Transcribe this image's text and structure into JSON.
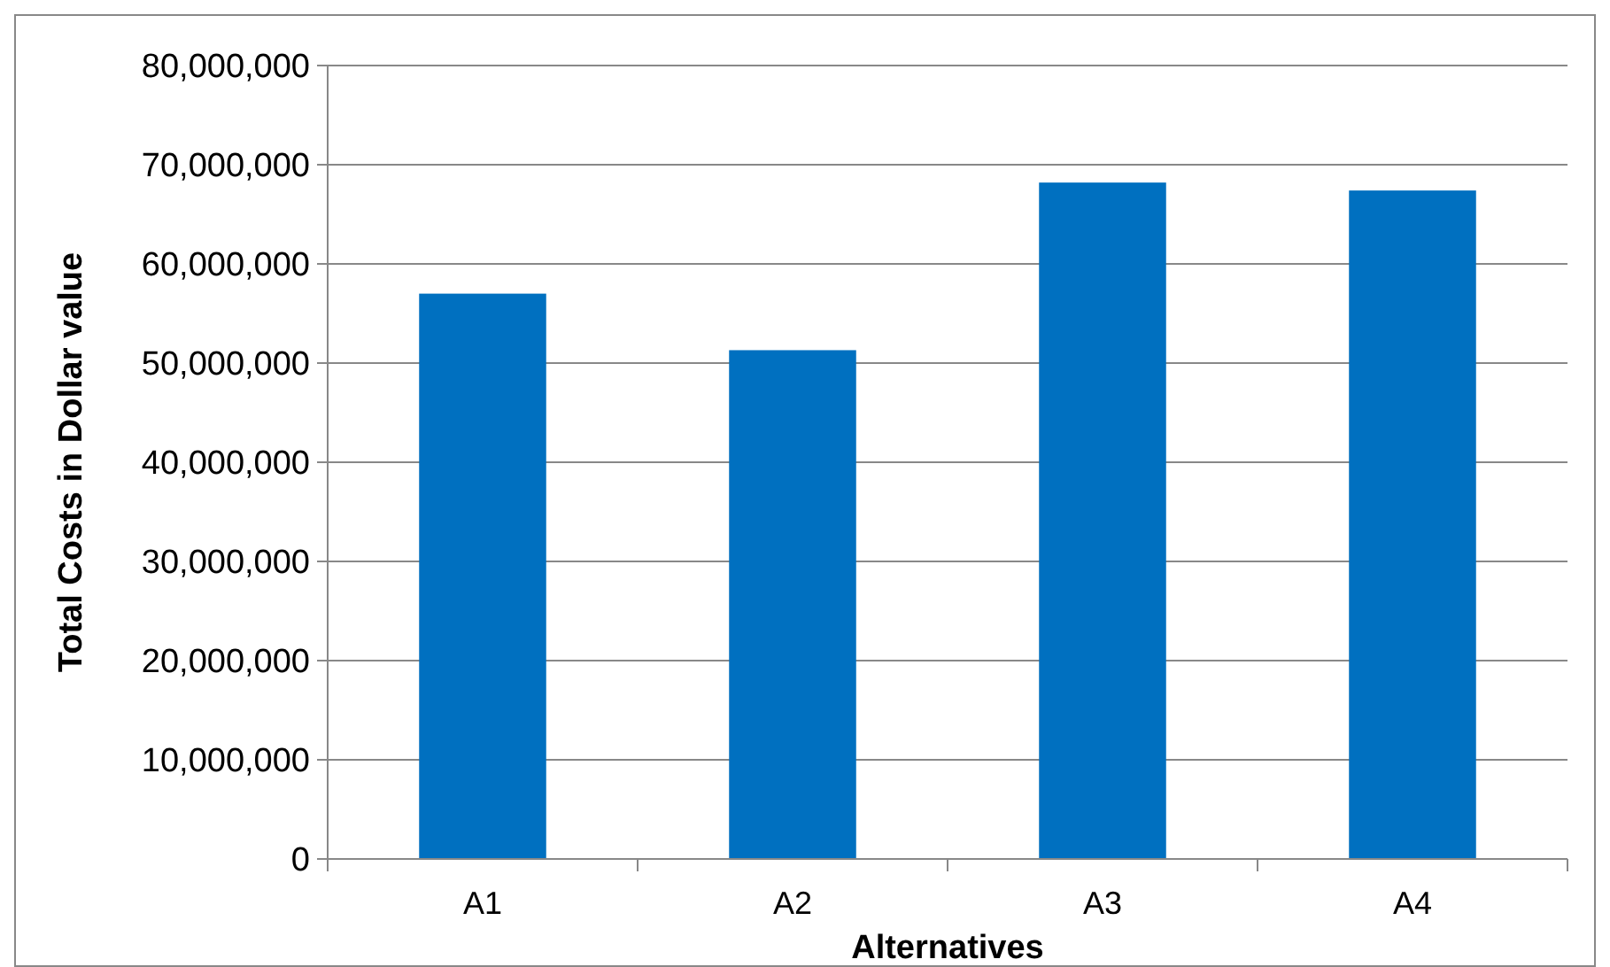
{
  "chart_data": {
    "type": "bar",
    "xlabel": "Alternatives",
    "ylabel": "Total Costs in Dollar value",
    "categories": [
      "A1",
      "A2",
      "A3",
      "A4"
    ],
    "values": [
      57000000,
      51300000,
      68200000,
      67400000
    ],
    "color": "#0070c0",
    "ylim": [
      0,
      80000000
    ],
    "yticks": [
      {
        "value": 0,
        "label": "0"
      },
      {
        "value": 10000000,
        "label": "10,000,000"
      },
      {
        "value": 20000000,
        "label": "20,000,000"
      },
      {
        "value": 30000000,
        "label": "30,000,000"
      },
      {
        "value": 40000000,
        "label": "40,000,000"
      },
      {
        "value": 50000000,
        "label": "50,000,000"
      },
      {
        "value": 60000000,
        "label": "60,000,000"
      },
      {
        "value": 70000000,
        "label": "70,000,000"
      },
      {
        "value": 80000000,
        "label": "80,000,000"
      }
    ],
    "grid": "y"
  }
}
